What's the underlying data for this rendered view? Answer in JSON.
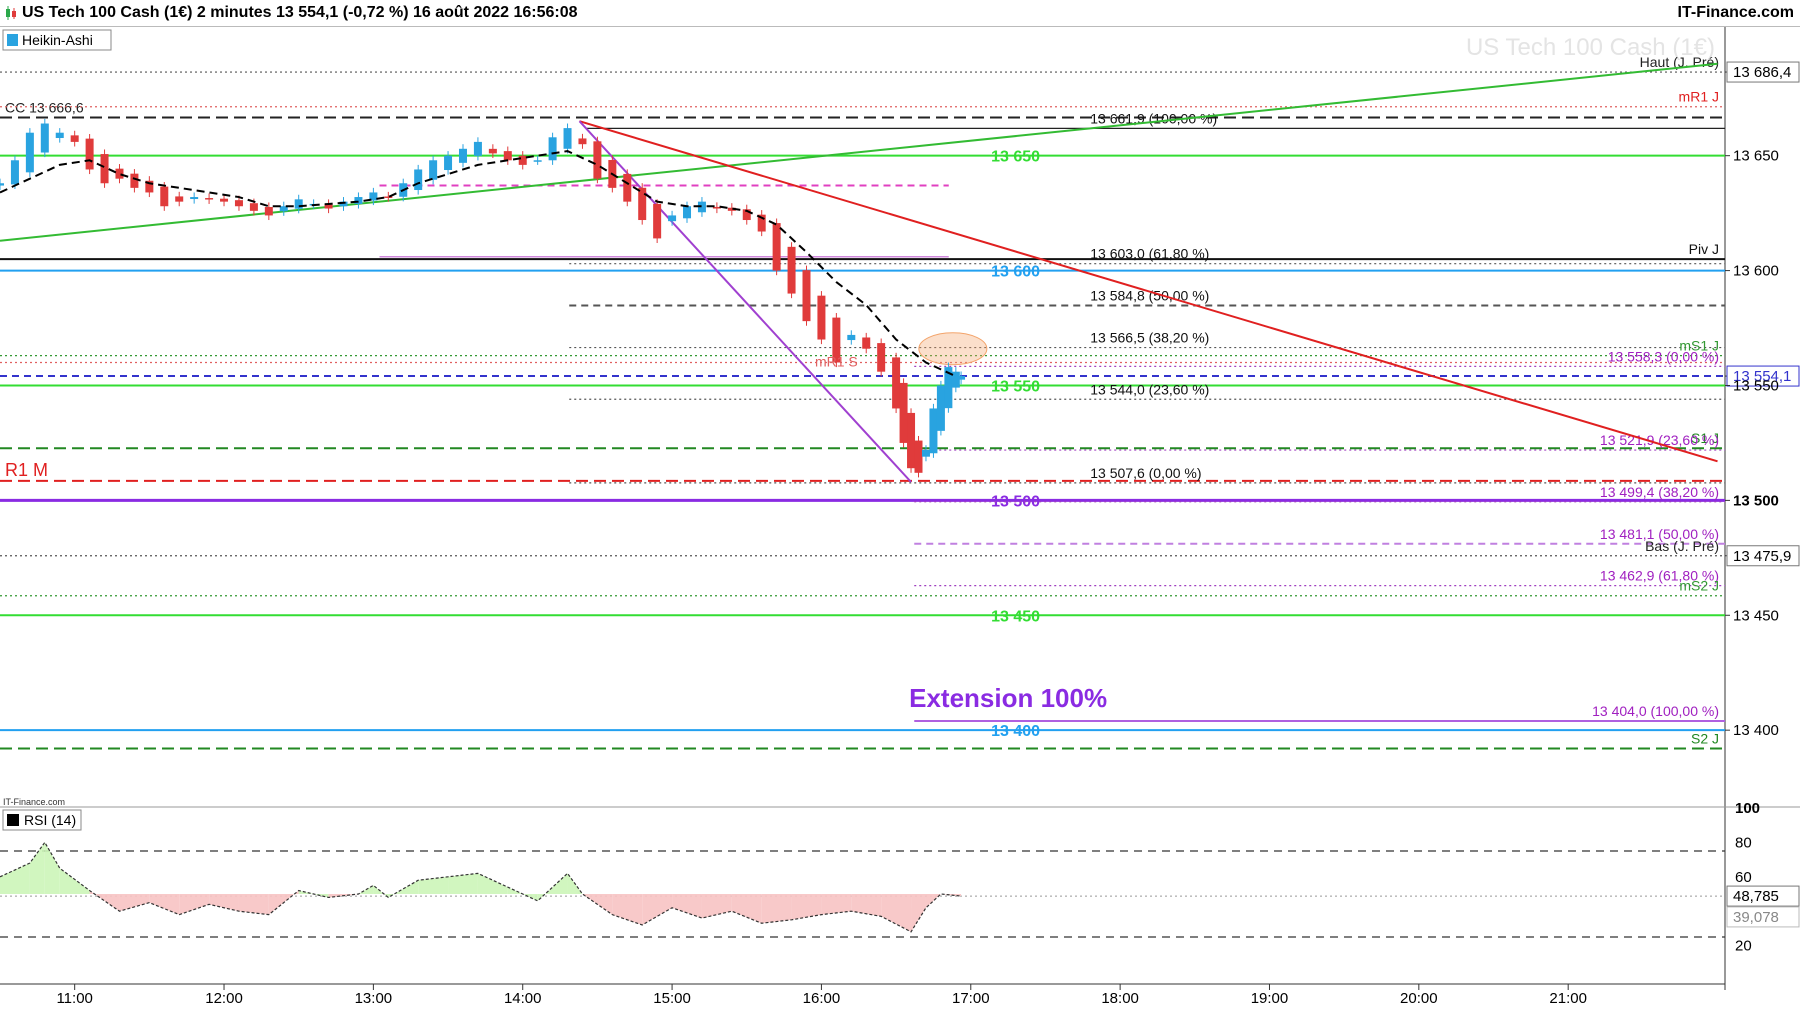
{
  "header": {
    "title": "US Tech 100 Cash (1€) 2 minutes 13 554,1 (-0,72 %) 16 août 2022 16:56:08",
    "brand": "IT-Finance.com"
  },
  "watermark": "US Tech 100 Cash (1€)",
  "small_logo": "IT-Finance.com",
  "colors": {
    "up": "#29a3e0",
    "down": "#e03b3b",
    "rsi_up": "#ccf5b8",
    "rsi_down": "#f7c3c3"
  },
  "chart_data": [
    {
      "type": "candlestick",
      "style_label": "Heikin-Ashi",
      "x_ticks": [
        "11:00",
        "12:00",
        "13:00",
        "14:00",
        "15:00",
        "16:00",
        "17:00",
        "18:00",
        "19:00",
        "20:00",
        "21:00"
      ],
      "x_tick_hours": [
        11,
        12,
        13,
        14,
        15,
        16,
        17,
        18,
        19,
        20,
        21
      ],
      "x_range_hours": [
        10.5,
        22.05
      ],
      "ylim": [
        13367,
        13706
      ],
      "y_ticks": [
        {
          "v": 13686.4,
          "label": "13 686,4",
          "boxed": true
        },
        {
          "v": 13650,
          "label": "13 650"
        },
        {
          "v": 13600,
          "label": "13 600"
        },
        {
          "v": 13554.1,
          "label": "13 554,1",
          "current": true
        },
        {
          "v": 13550,
          "label": "13 550"
        },
        {
          "v": 13500,
          "label": "13 500",
          "bold": true
        },
        {
          "v": 13475.9,
          "label": "13 475,9",
          "boxed": true
        },
        {
          "v": 13450,
          "label": "13 450"
        },
        {
          "v": 13400,
          "label": "13 400"
        }
      ],
      "series_close": [
        [
          10.5,
          13638
        ],
        [
          10.6,
          13648
        ],
        [
          10.7,
          13660
        ],
        [
          10.8,
          13664
        ],
        [
          10.9,
          13660
        ],
        [
          11.0,
          13656
        ],
        [
          11.1,
          13644
        ],
        [
          11.2,
          13638
        ],
        [
          11.3,
          13640
        ],
        [
          11.4,
          13636
        ],
        [
          11.5,
          13634
        ],
        [
          11.6,
          13628
        ],
        [
          11.7,
          13630
        ],
        [
          11.8,
          13632
        ],
        [
          11.9,
          13631
        ],
        [
          12.0,
          13630
        ],
        [
          12.1,
          13628
        ],
        [
          12.2,
          13626
        ],
        [
          12.3,
          13624
        ],
        [
          12.4,
          13628
        ],
        [
          12.5,
          13631
        ],
        [
          12.6,
          13629
        ],
        [
          12.7,
          13627
        ],
        [
          12.8,
          13630
        ],
        [
          12.9,
          13632
        ],
        [
          13.0,
          13634
        ],
        [
          13.1,
          13632
        ],
        [
          13.2,
          13638
        ],
        [
          13.3,
          13644
        ],
        [
          13.4,
          13648
        ],
        [
          13.5,
          13650
        ],
        [
          13.6,
          13653
        ],
        [
          13.7,
          13656
        ],
        [
          13.8,
          13651
        ],
        [
          13.9,
          13648
        ],
        [
          14.0,
          13646
        ],
        [
          14.1,
          13648
        ],
        [
          14.2,
          13658
        ],
        [
          14.3,
          13662
        ],
        [
          14.4,
          13655
        ],
        [
          14.5,
          13640
        ],
        [
          14.6,
          13636
        ],
        [
          14.7,
          13630
        ],
        [
          14.8,
          13622
        ],
        [
          14.9,
          13614
        ],
        [
          15.0,
          13624
        ],
        [
          15.1,
          13628
        ],
        [
          15.2,
          13630
        ],
        [
          15.3,
          13627
        ],
        [
          15.4,
          13626
        ],
        [
          15.5,
          13622
        ],
        [
          15.6,
          13617
        ],
        [
          15.7,
          13600
        ],
        [
          15.8,
          13590
        ],
        [
          15.9,
          13578
        ],
        [
          16.0,
          13570
        ],
        [
          16.1,
          13560
        ],
        [
          16.2,
          13572
        ],
        [
          16.3,
          13566
        ],
        [
          16.4,
          13556
        ],
        [
          16.5,
          13540
        ],
        [
          16.55,
          13525
        ],
        [
          16.6,
          13514
        ],
        [
          16.65,
          13512
        ],
        [
          16.7,
          13522
        ],
        [
          16.75,
          13540
        ],
        [
          16.8,
          13550
        ],
        [
          16.85,
          13558
        ],
        [
          16.9,
          13556
        ],
        [
          16.935,
          13554.1
        ]
      ],
      "moving_average": [
        [
          10.5,
          13634
        ],
        [
          10.7,
          13640
        ],
        [
          10.9,
          13646
        ],
        [
          11.1,
          13648
        ],
        [
          11.3,
          13642
        ],
        [
          11.5,
          13638
        ],
        [
          11.7,
          13636
        ],
        [
          11.9,
          13634
        ],
        [
          12.1,
          13632
        ],
        [
          12.3,
          13628
        ],
        [
          12.5,
          13628
        ],
        [
          12.7,
          13629
        ],
        [
          12.9,
          13630
        ],
        [
          13.1,
          13632
        ],
        [
          13.3,
          13638
        ],
        [
          13.5,
          13642
        ],
        [
          13.7,
          13646
        ],
        [
          13.9,
          13648
        ],
        [
          14.1,
          13650
        ],
        [
          14.3,
          13652
        ],
        [
          14.5,
          13646
        ],
        [
          14.7,
          13638
        ],
        [
          14.9,
          13630
        ],
        [
          15.1,
          13628
        ],
        [
          15.3,
          13628
        ],
        [
          15.5,
          13626
        ],
        [
          15.7,
          13620
        ],
        [
          15.9,
          13608
        ],
        [
          16.1,
          13595
        ],
        [
          16.3,
          13585
        ],
        [
          16.5,
          13570
        ],
        [
          16.7,
          13560
        ],
        [
          16.9,
          13554
        ]
      ],
      "levels": [
        {
          "v": 13686.4,
          "style": "dotted",
          "color": "#555555",
          "from": 0.0,
          "label": "Haut (J. Pré)",
          "label_side": "right",
          "label_color": "#222222"
        },
        {
          "v": 13666.6,
          "style": "dashed-long",
          "color": "#222222",
          "from": 0.0,
          "label": "CC 13 666,6",
          "label_side": "left",
          "label_color": "#222222"
        },
        {
          "v": 13671.3,
          "style": "dotted",
          "color": "#e06060",
          "from": 0.0,
          "label": "mR1 J",
          "label_side": "right",
          "label_color": "#e02020"
        },
        {
          "v": 13661.9,
          "style": "solid-thin",
          "color": "#222222",
          "from": 0.34,
          "label": "13 661,9 (100,00 %)",
          "label_side": "mid",
          "label_color": "#111111"
        },
        {
          "v": 13650,
          "style": "solid",
          "color": "#33dd33",
          "from": 0.0,
          "label": "13 650",
          "label_side": "center",
          "label_color": "#33dd33",
          "bold": true
        },
        {
          "v": 13637,
          "style": "dashed",
          "color": "#e040c0",
          "from": 0.22,
          "to": 0.55
        },
        {
          "v": 13605,
          "style": "solid",
          "color": "#111111",
          "from": 0.0,
          "label": "Piv J",
          "label_side": "right",
          "label_color": "#111111"
        },
        {
          "v": 13606,
          "style": "solid-thin",
          "color": "#c060d0",
          "from": 0.22,
          "to": 0.55
        },
        {
          "v": 13603.0,
          "style": "dotted",
          "color": "#555555",
          "from": 0.33,
          "label": "13 603,0 (61,80 %)",
          "label_side": "mid",
          "label_color": "#111111"
        },
        {
          "v": 13600,
          "style": "solid",
          "color": "#22a0f0",
          "from": 0.0,
          "label": "13 600",
          "label_side": "center",
          "label_color": "#22a0f0",
          "bold": true
        },
        {
          "v": 13584.8,
          "style": "dashed",
          "color": "#555555",
          "from": 0.33,
          "label": "13 584,8 (50,00 %)",
          "label_side": "mid",
          "label_color": "#111111"
        },
        {
          "v": 13566.5,
          "style": "dotted",
          "color": "#555555",
          "from": 0.33,
          "label": "13 566,5 (38,20 %)",
          "label_side": "mid",
          "label_color": "#111111"
        },
        {
          "v": 13563,
          "style": "dotted",
          "color": "#339933",
          "from": 0.0,
          "label": "mS1 J",
          "label_side": "right",
          "label_color": "#339933"
        },
        {
          "v": 13560,
          "style": "dotted",
          "color": "#e06060",
          "from": 0.0
        },
        {
          "v": 13558.3,
          "style": "dotted",
          "color": "#a040c0",
          "from": 0.53,
          "label": "13 558,3 (0,00 %)",
          "label_side": "right2",
          "label_color": "#a020c0"
        },
        {
          "v": 13554.1,
          "style": "dashed",
          "color": "#3333cc",
          "from": 0.0
        },
        {
          "v": 13550,
          "style": "solid",
          "color": "#33dd33",
          "from": 0.0,
          "label": "13 550",
          "label_side": "center",
          "label_color": "#33dd33",
          "bold": true
        },
        {
          "v": 13544.0,
          "style": "dotted",
          "color": "#555555",
          "from": 0.33,
          "label": "13 544,0 (23,60 %)",
          "label_side": "mid",
          "label_color": "#111111"
        },
        {
          "v": 13522.7,
          "style": "dashed-long",
          "color": "#228822",
          "from": 0.0,
          "label": "S1 J",
          "label_side": "right",
          "label_color": "#228822"
        },
        {
          "v": 13521.9,
          "style": "dotted",
          "color": "#a040c0",
          "from": 0.53,
          "label": "13 521,9 (23,60 %)",
          "label_side": "right2",
          "label_color": "#a020c0"
        },
        {
          "v": 13508.5,
          "style": "dashed-long",
          "color": "#e02020",
          "from": 0.0,
          "label": "R1 M",
          "label_side": "left",
          "label_color": "#e02020",
          "big": true
        },
        {
          "v": 13507.6,
          "style": "dotted",
          "color": "#555555",
          "from": 0.33,
          "label": "13 507,6 (0,00 %)",
          "label_side": "mid",
          "label_color": "#111111"
        },
        {
          "v": 13500,
          "style": "solid-thick",
          "color": "#8a2be2",
          "from": 0.0,
          "label": "13 500",
          "label_side": "center",
          "label_color": "#8a2be2",
          "bold": true
        },
        {
          "v": 13499.4,
          "style": "dotted",
          "color": "#a040c0",
          "from": 0.53,
          "label": "13 499,4 (38,20 %)",
          "label_side": "right2",
          "label_color": "#a020c0"
        },
        {
          "v": 13481.1,
          "style": "dashed",
          "color": "#c080e0",
          "from": 0.53,
          "label": "13 481,1 (50,00 %)",
          "label_side": "right2",
          "label_color": "#a020c0"
        },
        {
          "v": 13475.9,
          "style": "dotted",
          "color": "#555555",
          "from": 0.0,
          "label": "Bas (J. Pré)",
          "label_side": "right",
          "label_color": "#222222"
        },
        {
          "v": 13462.9,
          "style": "dotted",
          "color": "#a040c0",
          "from": 0.53,
          "label": "13 462,9 (61,80 %)",
          "label_side": "right2",
          "label_color": "#a020c0"
        },
        {
          "v": 13458.5,
          "style": "dotted",
          "color": "#339933",
          "from": 0.0,
          "label": "mS2 J",
          "label_side": "right",
          "label_color": "#339933"
        },
        {
          "v": 13450,
          "style": "solid",
          "color": "#33dd33",
          "from": 0.0,
          "label": "13 450",
          "label_side": "center",
          "label_color": "#33dd33",
          "bold": true
        },
        {
          "v": 13404.0,
          "style": "solid",
          "color": "#b060e0",
          "from": 0.53,
          "label": "13 404,0 (100,00 %)",
          "label_side": "right2",
          "label_color": "#a020c0"
        },
        {
          "v": 13400,
          "style": "solid",
          "color": "#22a0f0",
          "from": 0.0,
          "label": "13 400",
          "label_side": "center",
          "label_color": "#22a0f0",
          "bold": true
        },
        {
          "v": 13392,
          "style": "dashed-long",
          "color": "#228822",
          "from": 0.0,
          "label": "S2 J",
          "label_side": "right",
          "label_color": "#228822"
        }
      ],
      "trendlines": [
        {
          "color": "#33bb33",
          "from": [
            10.5,
            13613
          ],
          "to": [
            22.0,
            13690
          ]
        },
        {
          "color": "#e02020",
          "from": [
            14.38,
            13665
          ],
          "to": [
            22.0,
            13517
          ]
        },
        {
          "color": "#a040d0",
          "from": [
            14.38,
            13665
          ],
          "to": [
            16.6,
            13508
          ]
        }
      ],
      "annotations": [
        {
          "text": "mR1 S",
          "v": 13560,
          "h": 16.1,
          "color": "#e06060"
        },
        {
          "text": "Extension 100%",
          "v": 13410,
          "h": 17.25,
          "color": "#8a2be2",
          "big": true
        }
      ],
      "highlight_ellipse": {
        "h": 16.88,
        "v": 13566,
        "color": "#f3a46b"
      }
    },
    {
      "type": "area",
      "name": "RSI (14)",
      "ylim": [
        0,
        100
      ],
      "y_ticks": [
        100,
        80,
        60,
        20
      ],
      "levels": [
        75,
        25
      ],
      "current_value": "48,785",
      "secondary_value": "39,078",
      "x_range_hours": [
        10.5,
        22.05
      ],
      "values": [
        [
          10.5,
          60
        ],
        [
          10.7,
          68
        ],
        [
          10.8,
          80
        ],
        [
          10.9,
          65
        ],
        [
          11.1,
          52
        ],
        [
          11.3,
          40
        ],
        [
          11.5,
          45
        ],
        [
          11.7,
          38
        ],
        [
          11.9,
          44
        ],
        [
          12.1,
          40
        ],
        [
          12.3,
          38
        ],
        [
          12.5,
          52
        ],
        [
          12.7,
          48
        ],
        [
          12.9,
          50
        ],
        [
          13.0,
          55
        ],
        [
          13.1,
          48
        ],
        [
          13.3,
          58
        ],
        [
          13.5,
          60
        ],
        [
          13.7,
          62
        ],
        [
          13.9,
          54
        ],
        [
          14.1,
          46
        ],
        [
          14.3,
          62
        ],
        [
          14.4,
          50
        ],
        [
          14.6,
          38
        ],
        [
          14.8,
          32
        ],
        [
          15.0,
          42
        ],
        [
          15.2,
          36
        ],
        [
          15.4,
          40
        ],
        [
          15.6,
          33
        ],
        [
          15.8,
          35
        ],
        [
          16.0,
          38
        ],
        [
          16.2,
          40
        ],
        [
          16.4,
          37
        ],
        [
          16.6,
          28
        ],
        [
          16.7,
          42
        ],
        [
          16.8,
          50
        ],
        [
          16.935,
          48.785
        ]
      ]
    }
  ]
}
